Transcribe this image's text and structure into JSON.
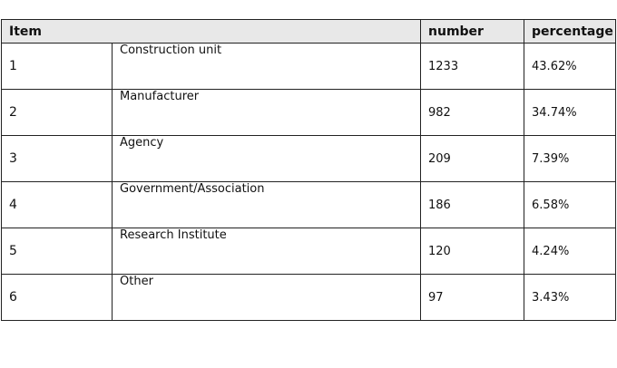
{
  "table": {
    "headers": {
      "item": "Item",
      "number": "number",
      "percentage": "percentage"
    },
    "rows": [
      {
        "item": "1",
        "category": "Construction unit",
        "number": "1233",
        "percentage": "43.62%"
      },
      {
        "item": "2",
        "category": "Manufacturer",
        "number": "982",
        "percentage": "34.74%"
      },
      {
        "item": "3",
        "category": "Agency",
        "number": "209",
        "percentage": "7.39%"
      },
      {
        "item": "4",
        "category": "Government/Association",
        "number": "186",
        "percentage": "6.58%"
      },
      {
        "item": "5",
        "category": "Research Institute",
        "number": "120",
        "percentage": "4.24%"
      },
      {
        "item": "6",
        "category": "Other",
        "number": "97",
        "percentage": "3.43%"
      }
    ]
  }
}
